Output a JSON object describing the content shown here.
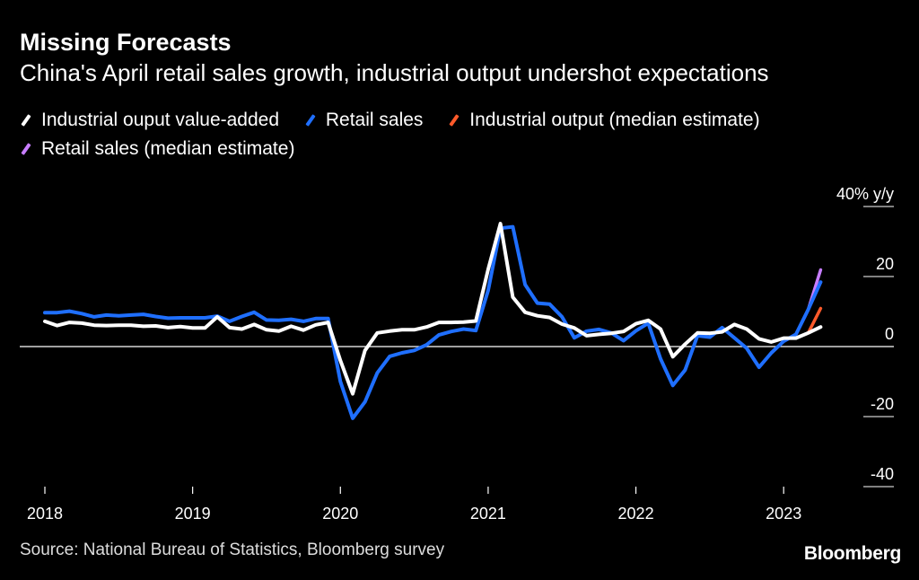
{
  "title": "Missing Forecasts",
  "subtitle": "China's April retail sales growth, industrial output undershot expectations",
  "legend": [
    {
      "label": "Industrial ouput value-added",
      "color": "#ffffff"
    },
    {
      "label": "Retail sales",
      "color": "#1f6fff"
    },
    {
      "label": "Industrial output (median estimate)",
      "color": "#ff5a2a"
    },
    {
      "label": "Retail sales (median estimate)",
      "color": "#c77dff"
    }
  ],
  "source": "Source: National Bureau of Statistics, Bloomberg survey",
  "brand": "Bloomberg",
  "chart_data": {
    "type": "line",
    "ylabel": "40% y/y",
    "ylim": [
      -40,
      40
    ],
    "yticks": [
      {
        "value": 40,
        "label": "40% y/y"
      },
      {
        "value": 20,
        "label": "20"
      },
      {
        "value": 0,
        "label": "0"
      },
      {
        "value": -20,
        "label": "-20"
      },
      {
        "value": -40,
        "label": "-40"
      }
    ],
    "xlim": [
      "2018-01",
      "2023-07"
    ],
    "xticks": [
      "2018",
      "2019",
      "2020",
      "2021",
      "2022",
      "2023"
    ],
    "series": [
      {
        "name": "Industrial ouput value-added",
        "color": "#ffffff",
        "points": [
          [
            "2018-01",
            7.2
          ],
          [
            "2018-02",
            6.0
          ],
          [
            "2018-03",
            6.9
          ],
          [
            "2018-04",
            6.7
          ],
          [
            "2018-05",
            6.1
          ],
          [
            "2018-06",
            6.0
          ],
          [
            "2018-07",
            6.1
          ],
          [
            "2018-08",
            6.1
          ],
          [
            "2018-09",
            5.8
          ],
          [
            "2018-10",
            5.9
          ],
          [
            "2018-11",
            5.4
          ],
          [
            "2018-12",
            5.7
          ],
          [
            "2019-01",
            5.3
          ],
          [
            "2019-02",
            5.3
          ],
          [
            "2019-03",
            8.5
          ],
          [
            "2019-04",
            5.4
          ],
          [
            "2019-05",
            5.0
          ],
          [
            "2019-06",
            6.3
          ],
          [
            "2019-07",
            4.8
          ],
          [
            "2019-08",
            4.4
          ],
          [
            "2019-09",
            5.8
          ],
          [
            "2019-10",
            4.7
          ],
          [
            "2019-11",
            6.2
          ],
          [
            "2019-12",
            6.9
          ],
          [
            "2020-01",
            -4.0
          ],
          [
            "2020-02",
            -13.5
          ],
          [
            "2020-03",
            -1.1
          ],
          [
            "2020-04",
            3.9
          ],
          [
            "2020-05",
            4.4
          ],
          [
            "2020-06",
            4.8
          ],
          [
            "2020-07",
            4.8
          ],
          [
            "2020-08",
            5.6
          ],
          [
            "2020-09",
            6.9
          ],
          [
            "2020-10",
            6.9
          ],
          [
            "2020-11",
            7.0
          ],
          [
            "2020-12",
            7.3
          ],
          [
            "2021-01",
            22.0
          ],
          [
            "2021-02",
            35.1
          ],
          [
            "2021-03",
            14.1
          ],
          [
            "2021-04",
            9.8
          ],
          [
            "2021-05",
            8.8
          ],
          [
            "2021-06",
            8.3
          ],
          [
            "2021-07",
            6.4
          ],
          [
            "2021-08",
            5.3
          ],
          [
            "2021-09",
            3.1
          ],
          [
            "2021-10",
            3.5
          ],
          [
            "2021-11",
            3.8
          ],
          [
            "2021-12",
            4.3
          ],
          [
            "2022-01",
            6.5
          ],
          [
            "2022-02",
            7.5
          ],
          [
            "2022-03",
            5.0
          ],
          [
            "2022-04",
            -2.9
          ],
          [
            "2022-05",
            0.7
          ],
          [
            "2022-06",
            3.9
          ],
          [
            "2022-07",
            3.8
          ],
          [
            "2022-08",
            4.2
          ],
          [
            "2022-09",
            6.3
          ],
          [
            "2022-10",
            5.0
          ],
          [
            "2022-11",
            2.2
          ],
          [
            "2022-12",
            1.3
          ],
          [
            "2023-01",
            2.4
          ],
          [
            "2023-02",
            2.4
          ],
          [
            "2023-03",
            3.9
          ],
          [
            "2023-04",
            5.6
          ]
        ]
      },
      {
        "name": "Retail sales",
        "color": "#1f6fff",
        "points": [
          [
            "2018-01",
            9.7
          ],
          [
            "2018-02",
            9.7
          ],
          [
            "2018-03",
            10.1
          ],
          [
            "2018-04",
            9.4
          ],
          [
            "2018-05",
            8.5
          ],
          [
            "2018-06",
            9.0
          ],
          [
            "2018-07",
            8.8
          ],
          [
            "2018-08",
            9.0
          ],
          [
            "2018-09",
            9.2
          ],
          [
            "2018-10",
            8.6
          ],
          [
            "2018-11",
            8.1
          ],
          [
            "2018-12",
            8.2
          ],
          [
            "2019-01",
            8.2
          ],
          [
            "2019-02",
            8.2
          ],
          [
            "2019-03",
            8.7
          ],
          [
            "2019-04",
            7.2
          ],
          [
            "2019-05",
            8.6
          ],
          [
            "2019-06",
            9.8
          ],
          [
            "2019-07",
            7.6
          ],
          [
            "2019-08",
            7.5
          ],
          [
            "2019-09",
            7.8
          ],
          [
            "2019-10",
            7.2
          ],
          [
            "2019-11",
            8.0
          ],
          [
            "2019-12",
            8.0
          ],
          [
            "2020-01",
            -10.0
          ],
          [
            "2020-02",
            -20.5
          ],
          [
            "2020-03",
            -15.8
          ],
          [
            "2020-04",
            -7.5
          ],
          [
            "2020-05",
            -2.8
          ],
          [
            "2020-06",
            -1.8
          ],
          [
            "2020-07",
            -1.1
          ],
          [
            "2020-08",
            0.5
          ],
          [
            "2020-09",
            3.3
          ],
          [
            "2020-10",
            4.3
          ],
          [
            "2020-11",
            5.0
          ],
          [
            "2020-12",
            4.6
          ],
          [
            "2021-01",
            16.0
          ],
          [
            "2021-02",
            33.8
          ],
          [
            "2021-03",
            34.2
          ],
          [
            "2021-04",
            17.7
          ],
          [
            "2021-05",
            12.4
          ],
          [
            "2021-06",
            12.1
          ],
          [
            "2021-07",
            8.5
          ],
          [
            "2021-08",
            2.5
          ],
          [
            "2021-09",
            4.4
          ],
          [
            "2021-10",
            4.9
          ],
          [
            "2021-11",
            3.9
          ],
          [
            "2021-12",
            1.7
          ],
          [
            "2022-01",
            4.5
          ],
          [
            "2022-02",
            6.7
          ],
          [
            "2022-03",
            -3.5
          ],
          [
            "2022-04",
            -11.1
          ],
          [
            "2022-05",
            -6.7
          ],
          [
            "2022-06",
            3.1
          ],
          [
            "2022-07",
            2.7
          ],
          [
            "2022-08",
            5.4
          ],
          [
            "2022-09",
            2.5
          ],
          [
            "2022-10",
            -0.5
          ],
          [
            "2022-11",
            -5.9
          ],
          [
            "2022-12",
            -1.8
          ],
          [
            "2023-01",
            1.5
          ],
          [
            "2023-02",
            3.5
          ],
          [
            "2023-03",
            10.6
          ],
          [
            "2023-04",
            18.4
          ]
        ]
      },
      {
        "name": "Industrial output (median estimate)",
        "color": "#ff5a2a",
        "points": [
          [
            "2023-03",
            3.9
          ],
          [
            "2023-04",
            10.9
          ]
        ]
      },
      {
        "name": "Retail sales (median estimate)",
        "color": "#c77dff",
        "points": [
          [
            "2023-03",
            10.6
          ],
          [
            "2023-04",
            21.9
          ]
        ]
      }
    ]
  }
}
